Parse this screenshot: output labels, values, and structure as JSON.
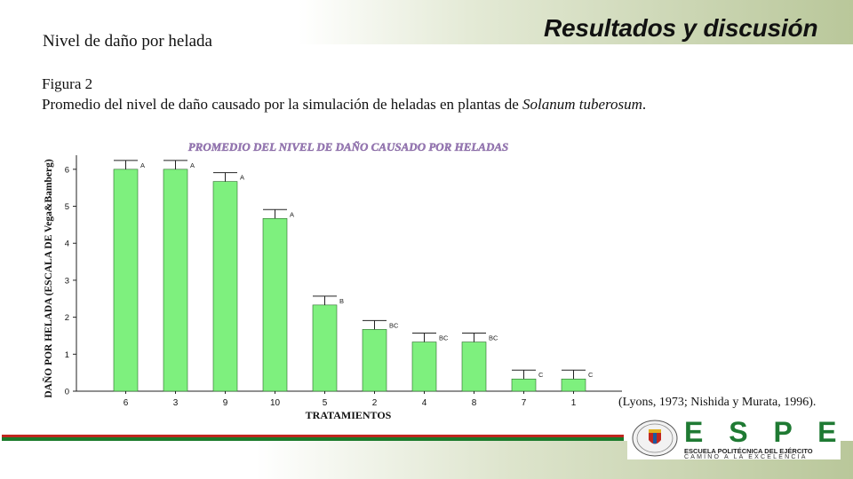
{
  "slide": {
    "title": "Nivel de daño por helada",
    "section": "Resultados y discusión",
    "figure_label": "Figura 2",
    "caption_prefix": "Promedio del nivel de daño causado por la simulación de heladas en plantas de ",
    "caption_species": "Solanum tuberosum",
    "caption_suffix": ".",
    "citation": "(Lyons, 1973; Nishida y Murata, 1996)."
  },
  "logo": {
    "letters": "E S P E",
    "line1": "ESCUELA POLITÉCNICA DEL EJÉRCITO",
    "line2": "CAMINO A LA EXCELENCIA"
  },
  "colors": {
    "bar": "#7ef07e",
    "title": "#1a1a1a",
    "red_rule": "#c0261f",
    "green_rule": "#1a7a2a",
    "brand_green": "#1f7a33"
  },
  "chart_data": {
    "type": "bar",
    "title": "PROMEDIO DEL NIVEL DE DAÑO CAUSADO POR HELADAS",
    "xlabel": "TRATAMIENTOS",
    "ylabel": "DAÑO POR HELADA (ESCALA DE Vega&Bamberg)",
    "categories": [
      "6",
      "3",
      "9",
      "10",
      "5",
      "2",
      "4",
      "8",
      "7",
      "1"
    ],
    "values": [
      6.0,
      6.0,
      5.67,
      4.67,
      2.33,
      1.67,
      1.33,
      1.33,
      0.33,
      0.33
    ],
    "letters": [
      "A",
      "A",
      "A",
      "A",
      "B",
      "BC",
      "BC",
      "BC",
      "C",
      "C"
    ],
    "yticks": [
      "0",
      "1",
      "2",
      "3",
      "4",
      "5",
      "6"
    ],
    "ylim": [
      0,
      6.5
    ],
    "grid": false,
    "error_bars": true
  }
}
